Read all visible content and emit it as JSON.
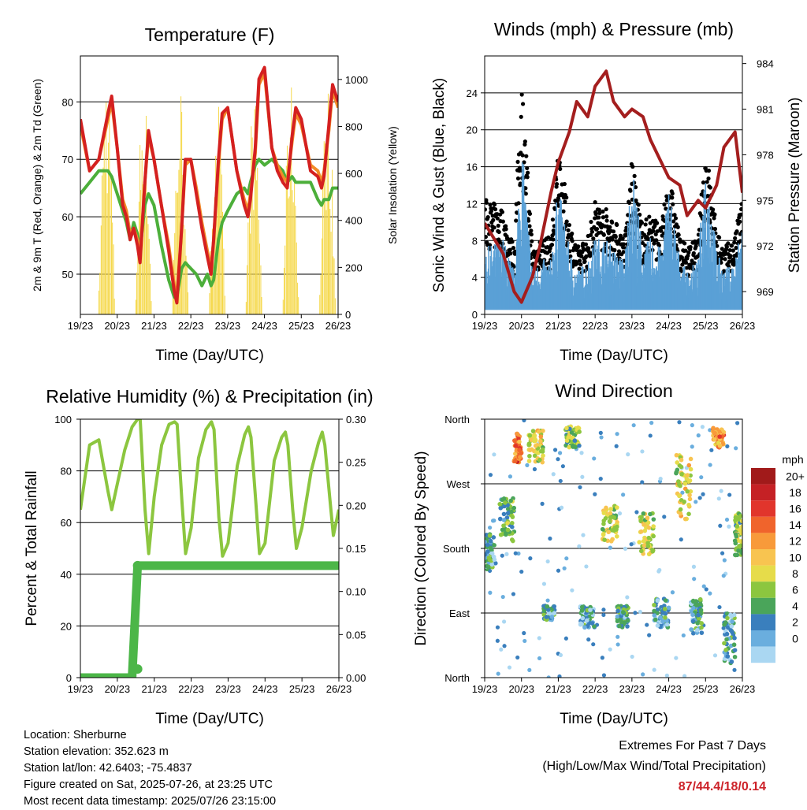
{
  "x_tick_labels": [
    "19/23",
    "20/23",
    "21/23",
    "22/23",
    "23/23",
    "24/23",
    "25/23",
    "26/23"
  ],
  "x_axis_label": "Time (Day/UTC)",
  "panels": {
    "temperature": {
      "title": "Temperature (F)",
      "ylabel_left": "2m & 9m T (Red, Orange) & 2m Td (Green)",
      "ylabel_right": "Solar Insolation (Yellow)",
      "left_ticks": [
        "50",
        "60",
        "70",
        "80"
      ],
      "right_ticks": [
        "0",
        "200",
        "400",
        "600",
        "800",
        "1000"
      ]
    },
    "winds": {
      "title": "Winds (mph) & Pressure (mb)",
      "ylabel_left": "Sonic Wind & Gust (Blue, Black)",
      "ylabel_right": "Station Pressure (Maroon)",
      "left_ticks": [
        "0",
        "4",
        "8",
        "12",
        "16",
        "20",
        "24"
      ],
      "right_ticks": [
        "969",
        "972",
        "975",
        "978",
        "981",
        "984"
      ]
    },
    "humidity": {
      "title": "Relative Humidity (%) & Precipitation (in)",
      "ylabel_left": "Percent & Total Rainfall",
      "left_ticks": [
        "0",
        "20",
        "40",
        "60",
        "80",
        "100"
      ],
      "right_ticks": [
        "0.00",
        "0.05",
        "0.10",
        "0.15",
        "0.20",
        "0.25",
        "0.30"
      ]
    },
    "direction": {
      "title": "Wind Direction",
      "ylabel_left": "Direction (Colored By Speed)",
      "left_ticks": [
        "North",
        "East",
        "South",
        "West",
        "North"
      ],
      "colorbar_title": "mph",
      "colorbar_labels": [
        "20+",
        "18",
        "16",
        "14",
        "12",
        "10",
        "8",
        "6",
        "4",
        "2",
        "0"
      ]
    }
  },
  "info": {
    "location": "Location: Sherburne",
    "elevation": "Station elevation: 352.623 m",
    "latlon": "Station lat/lon: 42.6403; -75.4837",
    "created": "Figure created on Sat, 2025-07-26, at 23:25 UTC",
    "recent": "Most recent data timestamp: 2025/07/26 23:15:00"
  },
  "extremes": {
    "line1": "Extremes For Past 7 Days",
    "line2": "(High/Low/Max Wind/Total Precipitation)",
    "values": "87/44.4/18/0.14"
  },
  "colors": {
    "temp_2m": "#d42020",
    "temp_9m": "#f28c28",
    "dewpoint": "#4caf3a",
    "solar": "#f5d84a",
    "wind": "#5aa0d6",
    "gust": "#000000",
    "pressure": "#a41e1e",
    "rh": "#8cc63f",
    "precip": "#4cb648",
    "colorbar": [
      "#a11a1a",
      "#c52125",
      "#e1352c",
      "#f0642c",
      "#f89a3a",
      "#f8c450",
      "#e6dc4a",
      "#8cc63f",
      "#4aa55a",
      "#3a7fbd",
      "#6aaede",
      "#aad7f2"
    ]
  },
  "chart_data": [
    {
      "type": "line",
      "title": "Temperature (F)",
      "xlabel": "Time (Day/UTC)",
      "ylabel": "2m & 9m T (Red, Orange) & 2m Td (Green)",
      "y2label": "Solar Insolation (Yellow)",
      "ylim": [
        43,
        88
      ],
      "y2lim": [
        0,
        1100
      ],
      "x": [
        19.0,
        19.25,
        19.5,
        19.75,
        19.85,
        20.0,
        20.15,
        20.25,
        20.35,
        20.45,
        20.55,
        20.62,
        20.75,
        20.85,
        21.0,
        21.2,
        21.4,
        21.55,
        21.62,
        21.75,
        21.85,
        22.0,
        22.15,
        22.3,
        22.45,
        22.55,
        22.62,
        22.75,
        22.85,
        23.0,
        23.25,
        23.45,
        23.55,
        23.62,
        23.75,
        23.85,
        24.0,
        24.2,
        24.35,
        24.5,
        24.62,
        24.75,
        24.85,
        25.0,
        25.25,
        25.45,
        25.55,
        25.62,
        25.75,
        25.85,
        26.0
      ],
      "series": [
        {
          "name": "2m T (Red)",
          "values": [
            77,
            68,
            70,
            78,
            81,
            72,
            62,
            60,
            56,
            58,
            55,
            52,
            66,
            75,
            70,
            62,
            54,
            47,
            45,
            58,
            70,
            70,
            64,
            58,
            53,
            50,
            56,
            70,
            78,
            79,
            68,
            62,
            60,
            63,
            72,
            84,
            86,
            72,
            68,
            66,
            65,
            74,
            79,
            77,
            68,
            67,
            65,
            67,
            76,
            83,
            80
          ]
        },
        {
          "name": "9m T (Orange)",
          "values": [
            76,
            68,
            70,
            77,
            80,
            72,
            63,
            61,
            57,
            58,
            56,
            53,
            66,
            74,
            70,
            62,
            55,
            48,
            46,
            58,
            69,
            70,
            65,
            59,
            54,
            51,
            56,
            69,
            77,
            79,
            68,
            63,
            61,
            64,
            71,
            83,
            85,
            72,
            69,
            67,
            66,
            73,
            78,
            76,
            69,
            68,
            66,
            68,
            75,
            82,
            79
          ]
        },
        {
          "name": "2m Td (Green)",
          "values": [
            64,
            66,
            68,
            68,
            67,
            64,
            61,
            59,
            56,
            59,
            57,
            54,
            62,
            64,
            62,
            55,
            49,
            46,
            46,
            51,
            52,
            51,
            50,
            48,
            50,
            48,
            49,
            56,
            59,
            61,
            64,
            65,
            64,
            66,
            69,
            70,
            69,
            70,
            69,
            68,
            66,
            67,
            66,
            66,
            66,
            63,
            62,
            63,
            63,
            65,
            65
          ]
        }
      ]
    },
    {
      "type": "line",
      "title": "Winds (mph) & Pressure (mb)",
      "xlabel": "Time (Day/UTC)",
      "ylabel": "Sonic Wind & Gust (Blue, Black)",
      "y2label": "Station Pressure (Maroon)",
      "ylim": [
        0,
        28
      ],
      "y2lim": [
        967.5,
        984.5
      ],
      "x": [
        19.0,
        19.5,
        19.8,
        20.0,
        20.3,
        20.5,
        20.8,
        21.0,
        21.3,
        21.5,
        21.8,
        22.0,
        22.3,
        22.5,
        22.8,
        23.0,
        23.3,
        23.5,
        23.8,
        24.0,
        24.3,
        24.5,
        24.8,
        25.0,
        25.3,
        25.5,
        25.8,
        26.0
      ],
      "series": [
        {
          "name": "Station Pressure (Maroon)",
          "values": [
            973.5,
            971.5,
            969.0,
            968.3,
            970.0,
            972.0,
            975.5,
            977.5,
            979.5,
            981.5,
            980.5,
            982.5,
            983.5,
            981.5,
            980.5,
            981.0,
            980.5,
            979.0,
            977.5,
            976.5,
            976.0,
            974.0,
            975.0,
            974.5,
            976.0,
            978.5,
            979.5,
            975.5
          ]
        },
        {
          "name": "Sonic Wind (Blue)",
          "values": [
            6,
            7,
            4,
            16,
            4,
            5,
            5,
            12,
            6,
            4,
            5,
            7,
            7,
            6,
            5,
            14,
            6,
            7,
            6,
            12,
            5,
            4,
            5,
            15,
            6,
            4,
            5,
            9
          ]
        },
        {
          "name": "Gust (Black)",
          "values": [
            12,
            11,
            7,
            25,
            7,
            8,
            8,
            18,
            10,
            7,
            8,
            12,
            11,
            10,
            8,
            16,
            9,
            11,
            9,
            15,
            8,
            7,
            8,
            18,
            9,
            7,
            8,
            13
          ]
        }
      ]
    },
    {
      "type": "line",
      "title": "Relative Humidity (%) & Precipitation (in)",
      "xlabel": "Time (Day/UTC)",
      "ylabel": "Percent & Total Rainfall",
      "ylim": [
        0,
        100
      ],
      "y2lim": [
        0,
        0.3
      ],
      "x": [
        19.0,
        19.25,
        19.5,
        19.75,
        19.85,
        20.0,
        20.2,
        20.4,
        20.55,
        20.62,
        20.75,
        20.85,
        21.0,
        21.2,
        21.4,
        21.55,
        21.62,
        21.75,
        21.85,
        22.0,
        22.2,
        22.4,
        22.55,
        22.62,
        22.75,
        22.85,
        23.0,
        23.25,
        23.45,
        23.55,
        23.62,
        23.75,
        23.85,
        24.0,
        24.25,
        24.45,
        24.55,
        24.62,
        24.75,
        24.85,
        25.0,
        25.25,
        25.45,
        25.55,
        25.62,
        25.75,
        25.85,
        26.0
      ],
      "series": [
        {
          "name": "Relative Humidity",
          "values": [
            65,
            90,
            92,
            72,
            65,
            75,
            88,
            97,
            100,
            100,
            65,
            48,
            70,
            90,
            98,
            99,
            98,
            68,
            48,
            58,
            85,
            96,
            99,
            96,
            62,
            47,
            52,
            82,
            94,
            97,
            93,
            68,
            48,
            52,
            84,
            93,
            95,
            90,
            65,
            50,
            58,
            80,
            91,
            95,
            90,
            70,
            55,
            65
          ]
        },
        {
          "name": "Total Precipitation",
          "values": [
            0,
            0,
            0,
            0,
            0,
            0,
            0,
            0,
            0.13,
            0.13,
            0.13,
            0.13,
            0.13,
            0.13,
            0.13,
            0.13,
            0.13,
            0.13,
            0.13,
            0.13,
            0.13,
            0.13,
            0.13,
            0.13,
            0.13,
            0.13,
            0.13,
            0.13,
            0.13,
            0.13,
            0.13,
            0.13,
            0.13,
            0.13,
            0.13,
            0.13,
            0.13,
            0.13,
            0.13,
            0.13,
            0.13,
            0.13,
            0.13,
            0.13,
            0.13,
            0.13,
            0.13,
            0.13
          ]
        }
      ]
    },
    {
      "type": "scatter",
      "title": "Wind Direction",
      "xlabel": "Time (Day/UTC)",
      "ylabel": "Direction (Colored By Speed)",
      "y_categories": [
        "North",
        "East",
        "South",
        "West",
        "North"
      ],
      "ylim": [
        0,
        360
      ],
      "colorbar": {
        "title": "mph",
        "levels": [
          0,
          2,
          4,
          6,
          8,
          10,
          12,
          14,
          16,
          18,
          20
        ]
      },
      "clusters": [
        {
          "x": [
            19.0,
            19.3
          ],
          "dir": [
            150,
            200
          ],
          "speed": 4
        },
        {
          "x": [
            19.4,
            19.8
          ],
          "dir": [
            190,
            250
          ],
          "speed": 5
        },
        {
          "x": [
            19.8,
            20.0
          ],
          "dir": [
            300,
            340
          ],
          "speed": 15
        },
        {
          "x": [
            20.2,
            20.6
          ],
          "dir": [
            300,
            345
          ],
          "speed": 9
        },
        {
          "x": [
            20.6,
            20.9
          ],
          "dir": [
            80,
            100
          ],
          "speed": 4
        },
        {
          "x": [
            21.2,
            21.6
          ],
          "dir": [
            320,
            350
          ],
          "speed": 7
        },
        {
          "x": [
            21.6,
            22.0
          ],
          "dir": [
            70,
            100
          ],
          "speed": 3
        },
        {
          "x": [
            22.2,
            22.6
          ],
          "dir": [
            190,
            240
          ],
          "speed": 8
        },
        {
          "x": [
            22.6,
            22.9
          ],
          "dir": [
            70,
            100
          ],
          "speed": 4
        },
        {
          "x": [
            23.2,
            23.6
          ],
          "dir": [
            170,
            230
          ],
          "speed": 9
        },
        {
          "x": [
            23.6,
            24.0
          ],
          "dir": [
            70,
            110
          ],
          "speed": 3
        },
        {
          "x": [
            24.2,
            24.6
          ],
          "dir": [
            220,
            310
          ],
          "speed": 9
        },
        {
          "x": [
            24.6,
            24.9
          ],
          "dir": [
            60,
            110
          ],
          "speed": 4
        },
        {
          "x": [
            25.2,
            25.5
          ],
          "dir": [
            320,
            350
          ],
          "speed": 13
        },
        {
          "x": [
            25.5,
            25.8
          ],
          "dir": [
            20,
            90
          ],
          "speed": 3
        },
        {
          "x": [
            25.8,
            26.0
          ],
          "dir": [
            170,
            230
          ],
          "speed": 7
        }
      ]
    }
  ]
}
